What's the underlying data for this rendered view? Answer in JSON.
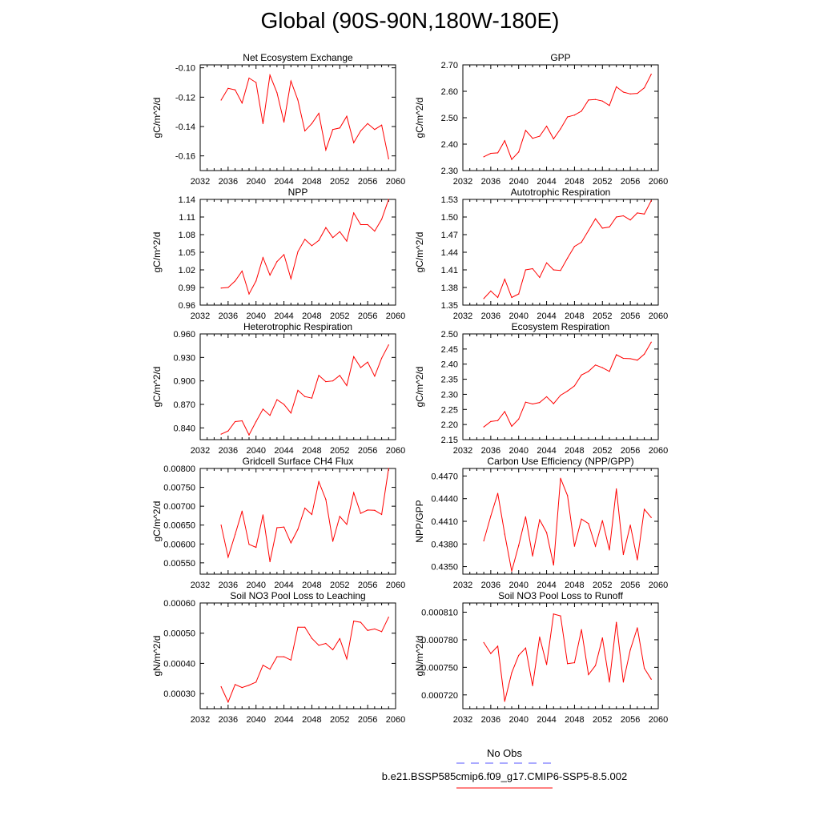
{
  "title": "Global (90S-90N,180W-180E)",
  "x_years": [
    2035,
    2036,
    2037,
    2038,
    2039,
    2040,
    2041,
    2042,
    2043,
    2044,
    2045,
    2046,
    2047,
    2048,
    2049,
    2050,
    2051,
    2052,
    2053,
    2054,
    2055,
    2056,
    2057,
    2058,
    2059
  ],
  "chart_data": [
    {
      "type": "line",
      "title": "Net Ecosystem Exchange",
      "ylabel": "gC/m^2/d",
      "xlim": [
        2032,
        2060
      ],
      "xticks": [
        "2032",
        "2036",
        "2040",
        "2044",
        "2048",
        "2052",
        "2056",
        "2060"
      ],
      "ylim": [
        -0.17,
        -0.098
      ],
      "yticks": [
        "-0.10",
        "-0.12",
        "-0.14",
        "-0.16"
      ],
      "ytick_values": [
        -0.1,
        -0.12,
        -0.14,
        -0.16
      ],
      "color": "#ff0000",
      "values": [
        -0.122,
        -0.114,
        -0.115,
        -0.124,
        -0.107,
        -0.11,
        -0.138,
        -0.105,
        -0.117,
        -0.137,
        -0.109,
        -0.122,
        -0.143,
        -0.138,
        -0.131,
        -0.156,
        -0.142,
        -0.141,
        -0.133,
        -0.151,
        -0.143,
        -0.138,
        -0.142,
        -0.139,
        -0.162
      ]
    },
    {
      "type": "line",
      "title": "GPP",
      "ylabel": "gC/m^2/d",
      "xlim": [
        2032,
        2060
      ],
      "xticks": [
        "2032",
        "2036",
        "2040",
        "2044",
        "2048",
        "2052",
        "2056",
        "2060"
      ],
      "ylim": [
        2.3,
        2.7
      ],
      "yticks": [
        "2.70",
        "2.60",
        "2.50",
        "2.40",
        "2.30"
      ],
      "ytick_values": [
        2.7,
        2.6,
        2.5,
        2.4,
        2.3
      ],
      "color": "#ff0000",
      "values": [
        2.352,
        2.365,
        2.367,
        2.413,
        2.342,
        2.37,
        2.452,
        2.422,
        2.43,
        2.468,
        2.42,
        2.458,
        2.503,
        2.51,
        2.525,
        2.567,
        2.569,
        2.563,
        2.546,
        2.617,
        2.597,
        2.59,
        2.592,
        2.613,
        2.665
      ]
    },
    {
      "type": "line",
      "title": "NPP",
      "ylabel": "gC/m^2/d",
      "xlim": [
        2032,
        2060
      ],
      "xticks": [
        "2032",
        "2036",
        "2040",
        "2044",
        "2048",
        "2052",
        "2056",
        "2060"
      ],
      "ylim": [
        0.96,
        1.14
      ],
      "yticks": [
        "1.14",
        "1.11",
        "1.08",
        "1.05",
        "1.02",
        "0.99",
        "0.96"
      ],
      "ytick_values": [
        1.14,
        1.11,
        1.08,
        1.05,
        1.02,
        0.99,
        0.96
      ],
      "color": "#ff0000",
      "values": [
        0.989,
        0.99,
        1.001,
        1.018,
        0.979,
        1.001,
        1.041,
        1.011,
        1.034,
        1.046,
        1.005,
        1.051,
        1.072,
        1.061,
        1.07,
        1.092,
        1.075,
        1.085,
        1.069,
        1.117,
        1.097,
        1.097,
        1.086,
        1.106,
        1.14
      ]
    },
    {
      "type": "line",
      "title": "Autotrophic Respiration",
      "ylabel": "gC/m^2/d",
      "xlim": [
        2032,
        2060
      ],
      "xticks": [
        "2032",
        "2036",
        "2040",
        "2044",
        "2048",
        "2052",
        "2056",
        "2060"
      ],
      "ylim": [
        1.35,
        1.53
      ],
      "yticks": [
        "1.53",
        "1.50",
        "1.47",
        "1.44",
        "1.41",
        "1.38",
        "1.35"
      ],
      "ytick_values": [
        1.53,
        1.5,
        1.47,
        1.44,
        1.41,
        1.38,
        1.35
      ],
      "color": "#ff0000",
      "values": [
        1.361,
        1.374,
        1.363,
        1.394,
        1.363,
        1.369,
        1.41,
        1.412,
        1.397,
        1.422,
        1.41,
        1.409,
        1.43,
        1.45,
        1.457,
        1.477,
        1.497,
        1.481,
        1.483,
        1.5,
        1.502,
        1.495,
        1.507,
        1.505,
        1.528
      ]
    },
    {
      "type": "line",
      "title": "Heterotrophic Respiration",
      "ylabel": "gC/m^2/d",
      "xlim": [
        2032,
        2060
      ],
      "xticks": [
        "2032",
        "2036",
        "2040",
        "2044",
        "2048",
        "2052",
        "2056",
        "2060"
      ],
      "ylim": [
        0.825,
        0.96
      ],
      "yticks": [
        "0.960",
        "0.930",
        "0.900",
        "0.870",
        "0.840"
      ],
      "ytick_values": [
        0.96,
        0.93,
        0.9,
        0.87,
        0.84
      ],
      "color": "#ff0000",
      "values": [
        0.832,
        0.836,
        0.848,
        0.849,
        0.831,
        0.848,
        0.864,
        0.856,
        0.876,
        0.87,
        0.859,
        0.888,
        0.88,
        0.878,
        0.907,
        0.899,
        0.9,
        0.907,
        0.894,
        0.931,
        0.917,
        0.924,
        0.906,
        0.929,
        0.946
      ]
    },
    {
      "type": "line",
      "title": "Ecosystem Respiration",
      "ylabel": "gC/m^2/d",
      "xlim": [
        2032,
        2060
      ],
      "xticks": [
        "2032",
        "2036",
        "2040",
        "2044",
        "2048",
        "2052",
        "2056",
        "2060"
      ],
      "ylim": [
        2.15,
        2.5
      ],
      "yticks": [
        "2.50",
        "2.45",
        "2.40",
        "2.35",
        "2.30",
        "2.25",
        "2.20",
        "2.15"
      ],
      "ytick_values": [
        2.5,
        2.45,
        2.4,
        2.35,
        2.3,
        2.25,
        2.2,
        2.15
      ],
      "color": "#ff0000",
      "values": [
        2.192,
        2.21,
        2.213,
        2.243,
        2.194,
        2.218,
        2.274,
        2.268,
        2.273,
        2.292,
        2.269,
        2.297,
        2.311,
        2.328,
        2.364,
        2.376,
        2.397,
        2.388,
        2.376,
        2.431,
        2.419,
        2.418,
        2.413,
        2.433,
        2.473
      ]
    },
    {
      "type": "line",
      "title": "Gridcell Surface CH4 Flux",
      "ylabel": "gC/m^2/d",
      "xlim": [
        2032,
        2060
      ],
      "xticks": [
        "2032",
        "2036",
        "2040",
        "2044",
        "2048",
        "2052",
        "2056",
        "2060"
      ],
      "ylim": [
        0.0052,
        0.008
      ],
      "yticks": [
        "0.00800",
        "0.00750",
        "0.00700",
        "0.00650",
        "0.00600",
        "0.00550"
      ],
      "ytick_values": [
        0.008,
        0.0075,
        0.007,
        0.0065,
        0.006,
        0.0055
      ],
      "color": "#ff0000",
      "values": [
        0.0065,
        0.00565,
        0.00625,
        0.00687,
        0.00599,
        0.00591,
        0.00677,
        0.00553,
        0.00643,
        0.00645,
        0.00603,
        0.00639,
        0.00695,
        0.00678,
        0.00765,
        0.00718,
        0.00607,
        0.00673,
        0.00652,
        0.00736,
        0.00681,
        0.0069,
        0.00689,
        0.00678,
        0.008
      ]
    },
    {
      "type": "line",
      "title": "Carbon Use Efficiency (NPP/GPP)",
      "ylabel": "NPP/GPP",
      "xlim": [
        2032,
        2060
      ],
      "xticks": [
        "2032",
        "2036",
        "2040",
        "2044",
        "2048",
        "2052",
        "2056",
        "2060"
      ],
      "ylim": [
        0.434,
        0.448
      ],
      "yticks": [
        "0.4470",
        "0.4440",
        "0.4410",
        "0.4380",
        "0.4350"
      ],
      "ytick_values": [
        0.447,
        0.444,
        0.441,
        0.438,
        0.435
      ],
      "color": "#ff0000",
      "values": [
        0.4384,
        0.4417,
        0.4447,
        0.4393,
        0.4344,
        0.4378,
        0.4416,
        0.4364,
        0.4412,
        0.4395,
        0.4352,
        0.4467,
        0.4444,
        0.4377,
        0.4413,
        0.4407,
        0.4377,
        0.4411,
        0.4372,
        0.4453,
        0.4366,
        0.4405,
        0.4359,
        0.4426,
        0.4415
      ]
    },
    {
      "type": "line",
      "title": "Soil NO3 Pool Loss to Leaching",
      "ylabel": "gN/m^2/d",
      "xlim": [
        2032,
        2060
      ],
      "xticks": [
        "2032",
        "2036",
        "2040",
        "2044",
        "2048",
        "2052",
        "2056",
        "2060"
      ],
      "ylim": [
        0.00025,
        0.0006
      ],
      "yticks": [
        "0.00060",
        "0.00050",
        "0.00040",
        "0.00030"
      ],
      "ytick_values": [
        0.0006,
        0.0005,
        0.0004,
        0.0003
      ],
      "color": "#ff0000",
      "values": [
        0.000323,
        0.000272,
        0.00033,
        0.00032,
        0.000328,
        0.000338,
        0.000394,
        0.000381,
        0.000422,
        0.000422,
        0.000411,
        0.00052,
        0.00052,
        0.000483,
        0.00046,
        0.000466,
        0.000445,
        0.000482,
        0.000415,
        0.00054,
        0.000536,
        0.000509,
        0.000514,
        0.000505,
        0.000553
      ]
    },
    {
      "type": "line",
      "title": "Soil NO3 Pool Loss to Runoff",
      "ylabel": "gN/m^2/d",
      "xlim": [
        2032,
        2060
      ],
      "xticks": [
        "2032",
        "2036",
        "2040",
        "2044",
        "2048",
        "2052",
        "2056",
        "2060"
      ],
      "ylim": [
        0.000705,
        0.00082
      ],
      "yticks": [
        "0.000810",
        "0.000780",
        "0.000750",
        "0.000720"
      ],
      "ytick_values": [
        0.00081,
        0.00078,
        0.00075,
        0.00072
      ],
      "color": "#ff0000",
      "values": [
        0.000777,
        0.000765,
        0.000773,
        0.000713,
        0.000744,
        0.000763,
        0.000771,
        0.00073,
        0.000783,
        0.000753,
        0.000808,
        0.000806,
        0.000754,
        0.000755,
        0.000791,
        0.000742,
        0.000752,
        0.000782,
        0.000734,
        0.000799,
        0.000734,
        0.000769,
        0.000793,
        0.000749,
        0.000737
      ]
    }
  ],
  "legend": {
    "entries": [
      {
        "label": "No Obs",
        "color": "#5555ff",
        "style": "dashed"
      },
      {
        "label": "b.e21.BSSP585cmip6.f09_g17.CMIP6-SSP5-8.5.002",
        "color": "#ff0000",
        "style": "solid"
      }
    ]
  }
}
